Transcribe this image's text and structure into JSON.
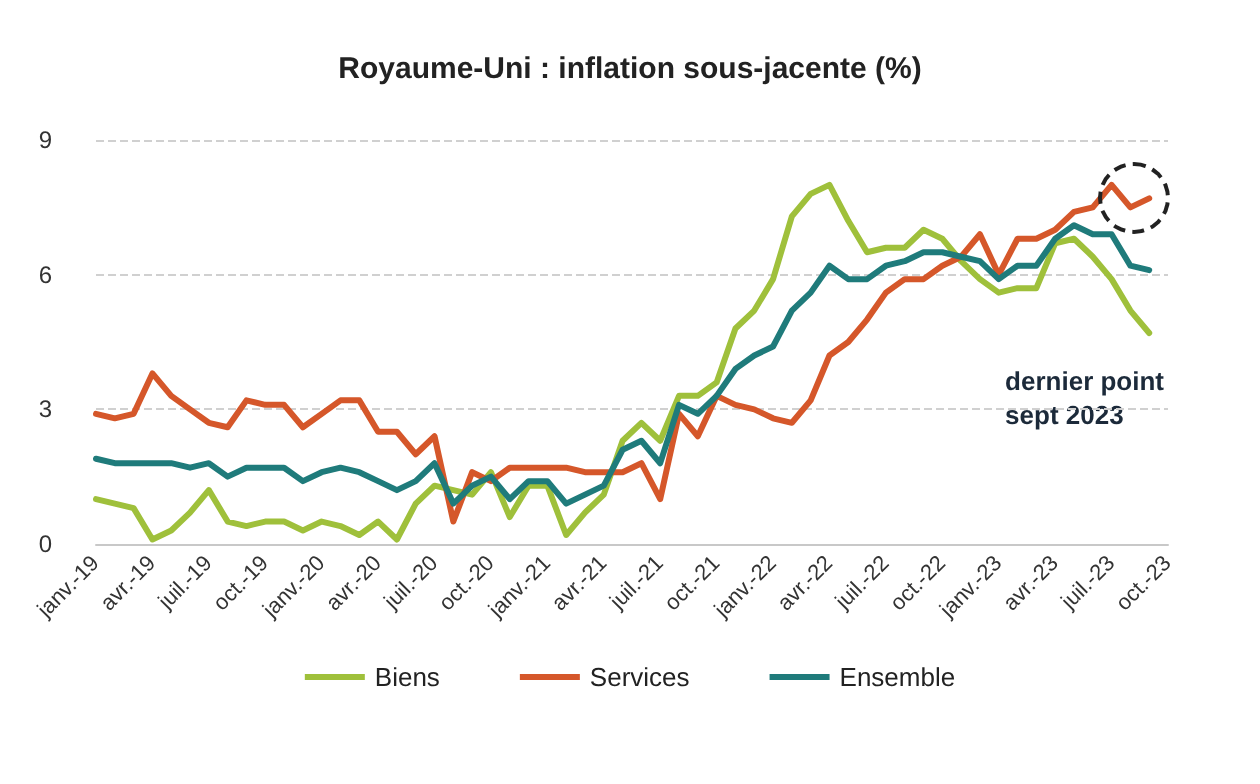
{
  "chart_data": {
    "type": "line",
    "title": "Royaume-Uni : inflation sous-jacente (%)",
    "categories": [
      "janv.-19",
      null,
      null,
      "avr.-19",
      null,
      null,
      "juil.-19",
      null,
      null,
      "oct.-19",
      null,
      null,
      "janv.-20",
      null,
      null,
      "avr.-20",
      null,
      null,
      "juil.-20",
      null,
      null,
      "oct.-20",
      null,
      null,
      "janv.-21",
      null,
      null,
      "avr.-21",
      null,
      null,
      "juil.-21",
      null,
      null,
      "oct.-21",
      null,
      null,
      "janv.-22",
      null,
      null,
      "avr.-22",
      null,
      null,
      "juil.-22",
      null,
      null,
      "oct.-22",
      null,
      null,
      "janv.-23",
      null,
      null,
      "avr.-23",
      null,
      null,
      "juil.-23",
      null,
      null,
      "oct.-23"
    ],
    "series": [
      {
        "name": "Biens",
        "color": "#9fc03b",
        "values": [
          1.0,
          0.9,
          0.8,
          0.1,
          0.3,
          0.7,
          1.2,
          0.5,
          0.4,
          0.5,
          0.5,
          0.3,
          0.5,
          0.4,
          0.2,
          0.5,
          0.1,
          0.9,
          1.3,
          1.2,
          1.1,
          1.6,
          0.6,
          1.3,
          1.3,
          0.2,
          0.7,
          1.1,
          2.3,
          2.7,
          2.3,
          3.3,
          3.3,
          3.6,
          4.8,
          5.2,
          5.9,
          7.3,
          7.8,
          8.0,
          7.2,
          6.5,
          6.6,
          6.6,
          7.0,
          6.8,
          6.3,
          5.9,
          5.6,
          5.7,
          5.7,
          6.7,
          6.8,
          6.4,
          5.9,
          5.2,
          4.7,
          null
        ]
      },
      {
        "name": "Services",
        "color": "#d5572a",
        "values": [
          2.9,
          2.8,
          2.9,
          3.8,
          3.3,
          3.0,
          2.7,
          2.6,
          3.2,
          3.1,
          3.1,
          2.6,
          2.9,
          3.2,
          3.2,
          2.5,
          2.5,
          2.0,
          2.4,
          0.5,
          1.6,
          1.4,
          1.7,
          1.7,
          1.7,
          1.7,
          1.6,
          1.6,
          1.6,
          1.8,
          1.0,
          2.9,
          2.4,
          3.3,
          3.1,
          3.0,
          2.8,
          2.7,
          3.2,
          4.2,
          4.5,
          5.0,
          5.6,
          5.9,
          5.9,
          6.2,
          6.4,
          6.9,
          6.0,
          6.8,
          6.8,
          7.0,
          7.4,
          7.5,
          8.0,
          7.5,
          7.7,
          null
        ]
      },
      {
        "name": "Ensemble",
        "color": "#1f7b7b",
        "values": [
          1.9,
          1.8,
          1.8,
          1.8,
          1.8,
          1.7,
          1.8,
          1.5,
          1.7,
          1.7,
          1.7,
          1.4,
          1.6,
          1.7,
          1.6,
          1.4,
          1.2,
          1.4,
          1.8,
          0.9,
          1.3,
          1.5,
          1.0,
          1.4,
          1.4,
          0.9,
          1.1,
          1.3,
          2.1,
          2.3,
          1.8,
          3.1,
          2.9,
          3.3,
          3.9,
          4.2,
          4.4,
          5.2,
          5.6,
          6.2,
          5.9,
          5.9,
          6.2,
          6.3,
          6.5,
          6.5,
          6.4,
          6.3,
          5.9,
          6.2,
          6.2,
          6.8,
          7.1,
          6.9,
          6.9,
          6.2,
          6.1,
          null
        ]
      }
    ],
    "ylim": [
      0,
      9
    ],
    "yticks": [
      0,
      3,
      6,
      9
    ],
    "grid": "y",
    "legend": "bottom",
    "marker": "none",
    "line_style": "solid",
    "annotations": [
      "dernier point\nsept 2023"
    ]
  }
}
